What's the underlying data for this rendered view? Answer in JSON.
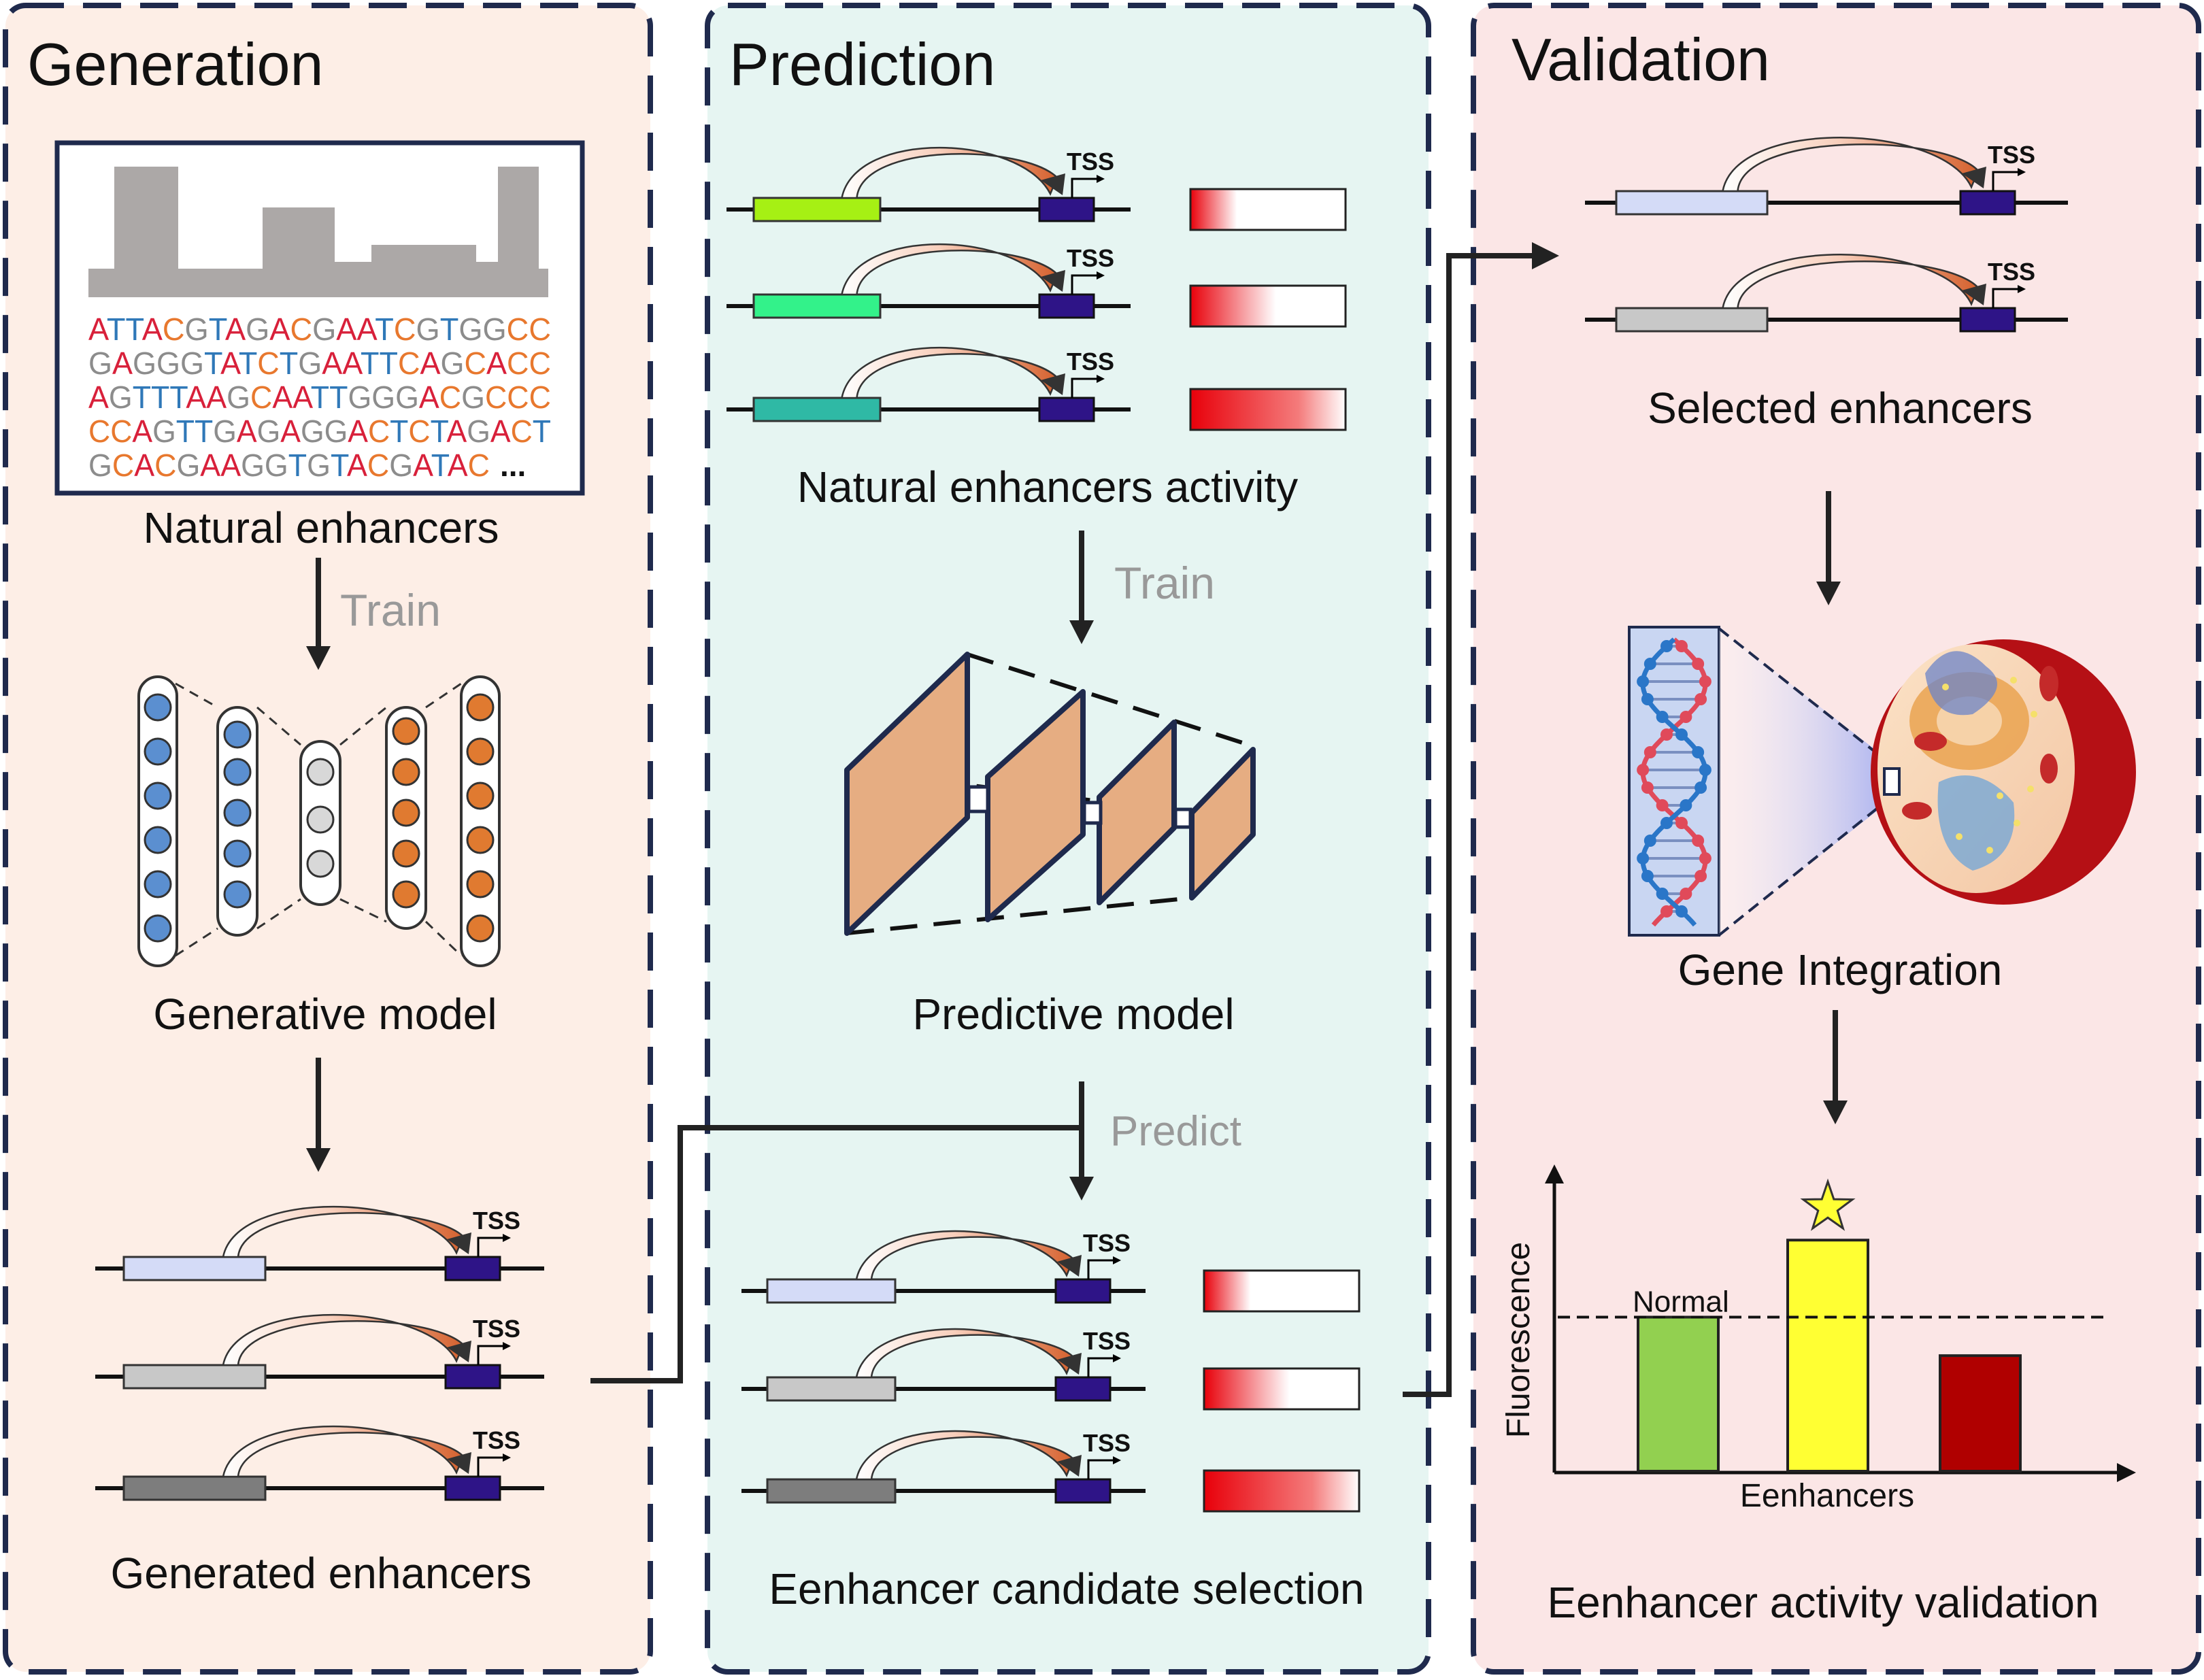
{
  "panels": {
    "generation": {
      "title": "Generation",
      "natural_label": "Natural enhancers",
      "train_label": "Train",
      "model_label": "Generative model",
      "generated_label": "Generated enhancers"
    },
    "prediction": {
      "title": "Prediction",
      "activity_label": "Natural enhancers activity",
      "train_label": "Train",
      "model_label": "Predictive model",
      "predict_label": "Predict",
      "selection_label": "Eenhancer candidate selection"
    },
    "validation": {
      "title": "Validation",
      "selected_label": "Selected enhancers",
      "integration_label": "Gene Integration",
      "validation_label": "Eenhancer activity validation"
    }
  },
  "sequence_lines": [
    "ATTACGTAGACGAATCGTGGCC",
    "GAGGGTATCTGAATTCAGCACC",
    "AGTTTAAGCAATTGGGACGCCC",
    "CCAGTTGAGAGGACTCTAGACT",
    "GCACGAAGGTGTACGATAC"
  ],
  "sequence_ellipsis": "...",
  "tss_label": "TSS",
  "chart": {
    "ylabel": "Fluorescence",
    "xlabel": "Eenhancers",
    "normal_label": "Normal"
  },
  "colors": {
    "panel_generation": "#fdeee6",
    "panel_prediction": "#e6f5f2",
    "panel_validation": "#fbe6e6",
    "border": "#1f2a4d",
    "promoter": "#2e1487",
    "arc": "#d86a3a",
    "nucleotide_A": "#d8203a",
    "nucleotide_C": "#e8782e",
    "nucleotide_G": "#8c8c8c",
    "nucleotide_T": "#2f78b8",
    "bar_normal": "#92d050",
    "bar_star": "#ffff33",
    "bar_low": "#b00000"
  },
  "chart_data": {
    "type": "bar",
    "categories": [
      "",
      "",
      ""
    ],
    "values": [
      1.0,
      1.5,
      0.75
    ],
    "colors": [
      "#92d050",
      "#ffff33",
      "#b00000"
    ],
    "reference_line": 1.0,
    "reference_label": "Normal",
    "starred_index": 1,
    "xlabel": "Eenhancers",
    "ylabel": "Fluorescence",
    "ylim": [
      0,
      2
    ],
    "grid": false
  }
}
